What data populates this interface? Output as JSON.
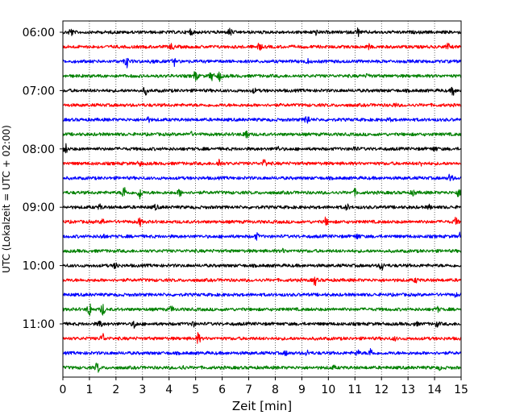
{
  "chart_data": {
    "type": "line",
    "xlabel": "Zeit  [min]",
    "ylabel": "UTC (Lokalzeit = UTC + 02:00)",
    "xlim": [
      0,
      15
    ],
    "x_ticks": [
      0,
      1,
      2,
      3,
      4,
      5,
      6,
      7,
      8,
      9,
      10,
      11,
      12,
      13,
      14,
      15
    ],
    "y_ticks": [
      "06:00",
      "07:00",
      "08:00",
      "09:00",
      "10:00",
      "11:00"
    ],
    "grid": "vertical dotted lines at each minute",
    "trace_interval_minutes": 15,
    "trace_color_cycle": [
      "#000000",
      "#ff0000",
      "#0000ff",
      "#008000"
    ],
    "traces": [
      {
        "start": "06:00",
        "color": "#000000",
        "events": [
          [
            0.3,
            0.9
          ],
          [
            4.8,
            0.7
          ],
          [
            6.3,
            0.8
          ],
          [
            9.5,
            0.6
          ],
          [
            11.1,
            0.9
          ]
        ]
      },
      {
        "start": "06:15",
        "color": "#ff0000",
        "events": [
          [
            4.1,
            0.7
          ],
          [
            7.4,
            0.8
          ],
          [
            11.5,
            0.5
          ],
          [
            14.5,
            0.6
          ]
        ]
      },
      {
        "start": "06:30",
        "color": "#0000ff",
        "events": [
          [
            2.4,
            1.2
          ],
          [
            3.4,
            0.8
          ],
          [
            4.2,
            0.8
          ],
          [
            9.2,
            0.4
          ]
        ]
      },
      {
        "start": "06:45",
        "color": "#008000",
        "events": [
          [
            5.0,
            1.1
          ],
          [
            5.6,
            1.0
          ],
          [
            5.9,
            1.0
          ],
          [
            11.5,
            0.4
          ]
        ]
      },
      {
        "start": "07:00",
        "color": "#000000",
        "events": [
          [
            3.1,
            0.8
          ],
          [
            7.2,
            0.4
          ],
          [
            14.7,
            1.0
          ]
        ]
      },
      {
        "start": "07:15",
        "color": "#ff0000",
        "events": [
          [
            12.5,
            0.3
          ]
        ]
      },
      {
        "start": "07:30",
        "color": "#0000ff",
        "events": [
          [
            3.2,
            0.5
          ],
          [
            9.2,
            1.2
          ],
          [
            12.3,
            0.3
          ]
        ]
      },
      {
        "start": "07:45",
        "color": "#008000",
        "events": [
          [
            4.8,
            0.5
          ],
          [
            6.9,
            1.3
          ]
        ]
      },
      {
        "start": "08:00",
        "color": "#000000",
        "events": [
          [
            0.1,
            1.0
          ],
          [
            8.1,
            0.4
          ],
          [
            11.0,
            0.5
          ],
          [
            14.0,
            0.5
          ]
        ]
      },
      {
        "start": "08:15",
        "color": "#ff0000",
        "events": [
          [
            2.9,
            0.5
          ],
          [
            5.9,
            1.0
          ],
          [
            7.6,
            0.9
          ],
          [
            13.5,
            0.4
          ]
        ]
      },
      {
        "start": "08:30",
        "color": "#0000ff",
        "events": [
          [
            14.6,
            1.0
          ]
        ]
      },
      {
        "start": "08:45",
        "color": "#008000",
        "events": [
          [
            2.3,
            1.4
          ],
          [
            2.9,
            1.4
          ],
          [
            4.4,
            0.7
          ],
          [
            11.0,
            0.6
          ],
          [
            13.2,
            0.6
          ],
          [
            14.9,
            0.8
          ]
        ]
      },
      {
        "start": "09:00",
        "color": "#000000",
        "events": [
          [
            1.4,
            0.5
          ],
          [
            3.5,
            0.5
          ],
          [
            10.7,
            0.6
          ],
          [
            13.8,
            0.4
          ]
        ]
      },
      {
        "start": "09:15",
        "color": "#ff0000",
        "events": [
          [
            1.5,
            0.5
          ],
          [
            2.9,
            0.8
          ],
          [
            9.9,
            0.8
          ],
          [
            14.8,
            0.8
          ]
        ]
      },
      {
        "start": "09:30",
        "color": "#0000ff",
        "events": [
          [
            1.5,
            0.5
          ],
          [
            7.3,
            0.6
          ],
          [
            11.1,
            0.6
          ],
          [
            15.0,
            1.0
          ]
        ]
      },
      {
        "start": "09:45",
        "color": "#008000",
        "events": [
          [
            8.3,
            0.3
          ]
        ]
      },
      {
        "start": "10:00",
        "color": "#000000",
        "events": [
          [
            2.0,
            0.8
          ],
          [
            12.0,
            1.1
          ]
        ]
      },
      {
        "start": "10:15",
        "color": "#ff0000",
        "events": [
          [
            9.5,
            1.0
          ],
          [
            13.3,
            0.4
          ]
        ]
      },
      {
        "start": "10:30",
        "color": "#0000ff",
        "events": [
          [
            14.8,
            0.3
          ]
        ]
      },
      {
        "start": "10:45",
        "color": "#008000",
        "events": [
          [
            1.0,
            1.6
          ],
          [
            1.5,
            1.3
          ],
          [
            4.1,
            0.6
          ],
          [
            14.1,
            0.5
          ]
        ]
      },
      {
        "start": "11:00",
        "color": "#000000",
        "events": [
          [
            1.4,
            0.8
          ],
          [
            2.7,
            0.9
          ],
          [
            4.9,
            0.5
          ],
          [
            13.3,
            0.4
          ],
          [
            14.1,
            0.5
          ]
        ]
      },
      {
        "start": "11:15",
        "color": "#ff0000",
        "events": [
          [
            1.5,
            1.0
          ],
          [
            5.1,
            1.1
          ],
          [
            12.5,
            0.3
          ]
        ]
      },
      {
        "start": "11:30",
        "color": "#0000ff",
        "events": [
          [
            8.4,
            0.4
          ],
          [
            9.2,
            0.5
          ],
          [
            11.1,
            0.6
          ],
          [
            11.6,
            1.0
          ]
        ]
      },
      {
        "start": "11:45",
        "color": "#008000",
        "events": [
          [
            1.3,
            1.1
          ],
          [
            4.5,
            0.4
          ],
          [
            10.2,
            0.3
          ],
          [
            14.2,
            0.3
          ]
        ]
      }
    ]
  }
}
